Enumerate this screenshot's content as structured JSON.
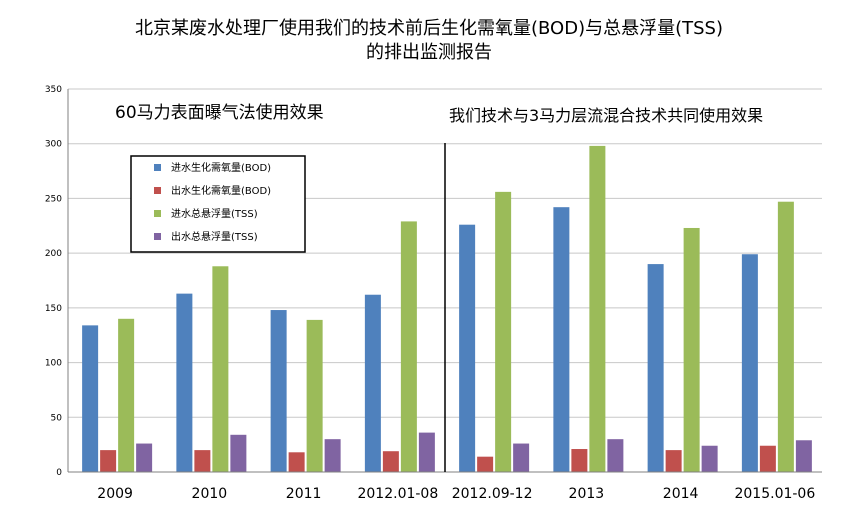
{
  "chart_data": {
    "type": "bar",
    "title_line1": "北京某废水处理厂使用我们的技术前后生化需氧量(BOD)与总悬浮量(TSS)",
    "title_line2": "的排出监测报告",
    "categories": [
      "2009",
      "2010",
      "2011",
      "2012.01-08",
      "2012.09-12",
      "2013",
      "2014",
      "2015.01-06"
    ],
    "series": [
      {
        "name": "进水生化需氧量(BOD)",
        "color": "#4F81BD",
        "values": [
          134,
          163,
          148,
          162,
          226,
          242,
          190,
          199
        ]
      },
      {
        "name": "出水生化需氧量(BOD)",
        "color": "#C0504D",
        "values": [
          20,
          20,
          18,
          19,
          14,
          21,
          20,
          24
        ]
      },
      {
        "name": "进水总悬浮量(TSS)",
        "color": "#9BBB59",
        "values": [
          140,
          188,
          139,
          229,
          256,
          298,
          223,
          247
        ]
      },
      {
        "name": "出水总悬浮量(TSS)",
        "color": "#8064A2",
        "values": [
          26,
          34,
          30,
          36,
          26,
          30,
          24,
          29
        ]
      }
    ],
    "ylim": [
      0,
      350
    ],
    "yticks": [
      0,
      50,
      100,
      150,
      200,
      250,
      300,
      350
    ],
    "grid": true,
    "legend_position": "top-left",
    "annotations": [
      {
        "text": "60马力表面曝气法使用效果"
      },
      {
        "text": "我们技术与3马力层流混合技术共同使用效果"
      }
    ]
  }
}
